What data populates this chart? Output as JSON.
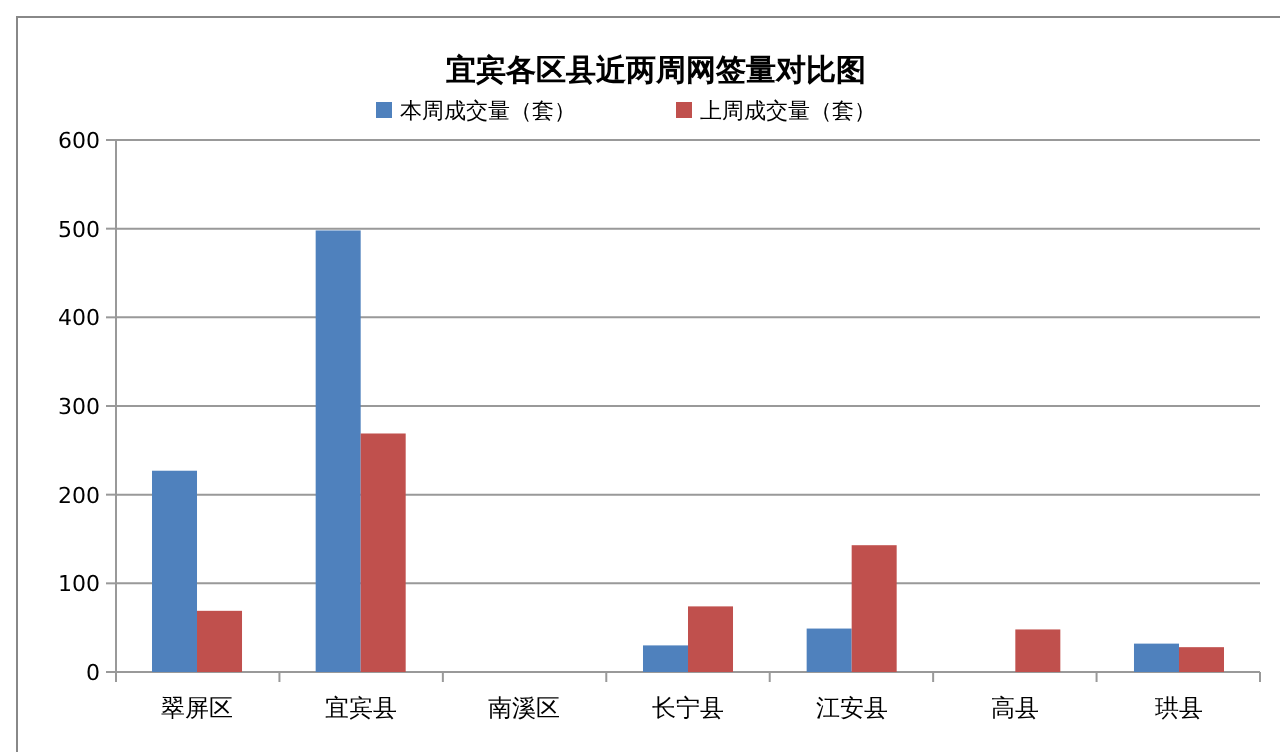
{
  "chart_data": {
    "type": "bar",
    "title": "宜宾各区县近两周网签量对比图",
    "categories": [
      "翠屏区",
      "宜宾县",
      "南溪区",
      "长宁县",
      "江安县",
      "高县",
      "珙县"
    ],
    "series": [
      {
        "name": "本周成交量（套）",
        "color": "#4f81bd",
        "values": [
          227,
          498,
          0,
          30,
          49,
          null,
          32
        ]
      },
      {
        "name": "上周成交量（套）",
        "color": "#c0504d",
        "values": [
          69,
          269,
          0,
          74,
          143,
          48,
          28
        ]
      }
    ],
    "ylim": [
      0,
      600
    ],
    "yticks": [
      0,
      100,
      200,
      300,
      400,
      500,
      600
    ],
    "grid": "y",
    "legend": "top"
  }
}
